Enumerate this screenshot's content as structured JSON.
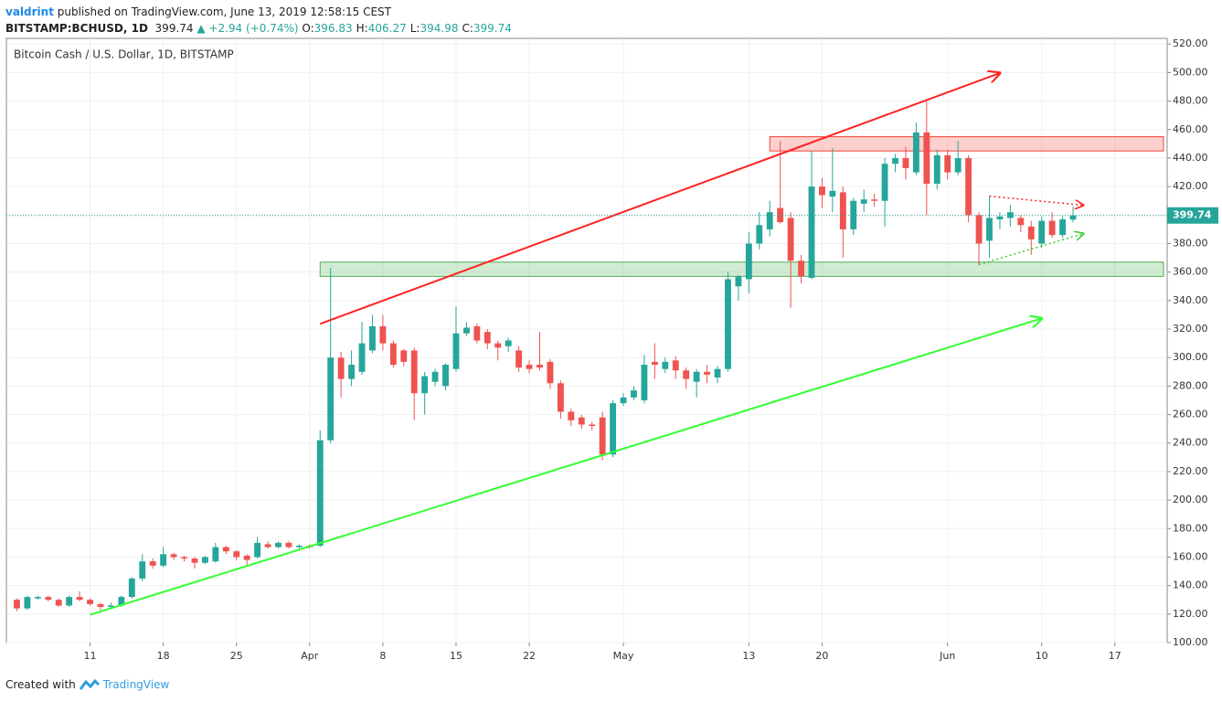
{
  "header": {
    "publisher": "valdrint",
    "published": "published on TradingView.com, June 13, 2019 12:58:15 CEST",
    "symbol": "BITSTAMP:BCHUSD, 1D",
    "last": "399.74",
    "change": "▲ +2.94 (+0.74%)",
    "ohlc": [
      {
        "label": "O:",
        "value": "396.83"
      },
      {
        "label": "H:",
        "value": "406.27"
      },
      {
        "label": "L:",
        "value": "394.98"
      },
      {
        "label": "C:",
        "value": "399.74"
      }
    ]
  },
  "footer": {
    "created": "Created with",
    "brand": "TradingView"
  },
  "chart_data": {
    "type": "candlestick",
    "title": "Bitcoin Cash / U.S. Dollar, 1D, BITSTAMP",
    "up_color": "#26a69a",
    "down_color": "#ef5350",
    "grid": true,
    "ylim": [
      100,
      524
    ],
    "yticks": [
      {
        "value": 100,
        "label": "100.00"
      },
      {
        "value": 120,
        "label": "120.00"
      },
      {
        "value": 140,
        "label": "140.00"
      },
      {
        "value": 160,
        "label": "160.00"
      },
      {
        "value": 180,
        "label": "180.00"
      },
      {
        "value": 200,
        "label": "200.00"
      },
      {
        "value": 220,
        "label": "220.00"
      },
      {
        "value": 240,
        "label": "240.00"
      },
      {
        "value": 260,
        "label": "260.00"
      },
      {
        "value": 280,
        "label": "280.00"
      },
      {
        "value": 300,
        "label": "300.00"
      },
      {
        "value": 320,
        "label": "320.00"
      },
      {
        "value": 340,
        "label": "340.00"
      },
      {
        "value": 360,
        "label": "360.00"
      },
      {
        "value": 380,
        "label": "380.00"
      },
      {
        "value": 400,
        "label": "400.00"
      },
      {
        "value": 420,
        "label": "420.00"
      },
      {
        "value": 440,
        "label": "440.00"
      },
      {
        "value": 460,
        "label": "460.00"
      },
      {
        "value": 480,
        "label": "480.00"
      },
      {
        "value": 500,
        "label": "500.00"
      },
      {
        "value": 520,
        "label": "520.00"
      }
    ],
    "xlim": [
      "03-03",
      "06-22"
    ],
    "xticks": [
      {
        "value": "03-11",
        "label": "11"
      },
      {
        "value": "03-18",
        "label": "18"
      },
      {
        "value": "03-25",
        "label": "25"
      },
      {
        "value": "04-01",
        "label": "Apr"
      },
      {
        "value": "04-08",
        "label": "8"
      },
      {
        "value": "04-15",
        "label": "15"
      },
      {
        "value": "04-22",
        "label": "22"
      },
      {
        "value": "05-01",
        "label": "May"
      },
      {
        "value": "05-13",
        "label": "13"
      },
      {
        "value": "05-20",
        "label": "20"
      },
      {
        "value": "06-01",
        "label": "Jun"
      },
      {
        "value": "06-10",
        "label": "10"
      },
      {
        "value": "06-17",
        "label": "17"
      }
    ],
    "last_price": 399.74,
    "last_price_color": "#26a69a",
    "zones": [
      {
        "low": 445,
        "high": 455,
        "start": "05-15",
        "end": "06-22",
        "color": "#f44336"
      },
      {
        "low": 357,
        "high": 367,
        "start": "04-02",
        "end": "06-22",
        "color": "#4caf50"
      }
    ],
    "trendlines": [
      {
        "start": {
          "date": "04-02",
          "price": 323.7
        },
        "end": {
          "date": "06-06",
          "price": 499.7
        },
        "color": "#f22",
        "dotted": false,
        "arrow": true
      },
      {
        "start": {
          "date": "03-11",
          "price": 119.5
        },
        "end": {
          "date": "06-10",
          "price": 327.5
        },
        "color": "#3f3",
        "dotted": false,
        "arrow": true
      },
      {
        "start": {
          "date": "06-05",
          "price": 413.3
        },
        "end": {
          "date": "06-14",
          "price": 406.9
        },
        "color": "#f22",
        "dotted": true,
        "arrow": true
      },
      {
        "start": {
          "date": "06-04",
          "price": 365.3
        },
        "end": {
          "date": "06-14",
          "price": 387
        },
        "color": "#3c3",
        "dotted": true,
        "arrow": true
      }
    ],
    "candles": [
      {
        "date": "03-04",
        "open": 130,
        "high": 131,
        "low": 122,
        "close": 124
      },
      {
        "date": "03-05",
        "open": 124,
        "high": 133,
        "low": 123,
        "close": 132
      },
      {
        "date": "03-06",
        "open": 131,
        "high": 133,
        "low": 130,
        "close": 132
      },
      {
        "date": "03-07",
        "open": 132,
        "high": 133,
        "low": 129,
        "close": 130
      },
      {
        "date": "03-08",
        "open": 130,
        "high": 131,
        "low": 125,
        "close": 126
      },
      {
        "date": "03-09",
        "open": 126,
        "high": 133,
        "low": 125,
        "close": 132
      },
      {
        "date": "03-10",
        "open": 132,
        "high": 136,
        "low": 129,
        "close": 130
      },
      {
        "date": "03-11",
        "open": 130,
        "high": 131,
        "low": 126,
        "close": 127
      },
      {
        "date": "03-12",
        "open": 127,
        "high": 128,
        "low": 122,
        "close": 125
      },
      {
        "date": "03-13",
        "open": 125,
        "high": 128,
        "low": 124,
        "close": 126
      },
      {
        "date": "03-14",
        "open": 126,
        "high": 133,
        "low": 125,
        "close": 132
      },
      {
        "date": "03-15",
        "open": 132,
        "high": 146,
        "low": 131,
        "close": 145
      },
      {
        "date": "03-16",
        "open": 145,
        "high": 162,
        "low": 143,
        "close": 157
      },
      {
        "date": "03-17",
        "open": 157,
        "high": 159,
        "low": 152,
        "close": 154
      },
      {
        "date": "03-18",
        "open": 154,
        "high": 167,
        "low": 153,
        "close": 162
      },
      {
        "date": "03-19",
        "open": 162,
        "high": 163,
        "low": 158,
        "close": 160
      },
      {
        "date": "03-20",
        "open": 160,
        "high": 161,
        "low": 157,
        "close": 159
      },
      {
        "date": "03-21",
        "open": 159,
        "high": 160,
        "low": 152,
        "close": 156
      },
      {
        "date": "03-22",
        "open": 156,
        "high": 161,
        "low": 155,
        "close": 160
      },
      {
        "date": "03-23",
        "open": 157,
        "high": 170,
        "low": 156,
        "close": 167
      },
      {
        "date": "03-24",
        "open": 167,
        "high": 168,
        "low": 162,
        "close": 164
      },
      {
        "date": "03-25",
        "open": 164,
        "high": 165,
        "low": 158,
        "close": 160
      },
      {
        "date": "03-26",
        "open": 161,
        "high": 162,
        "low": 154,
        "close": 158
      },
      {
        "date": "03-27",
        "open": 160,
        "high": 174,
        "low": 159,
        "close": 170
      },
      {
        "date": "03-28",
        "open": 169,
        "high": 171,
        "low": 166,
        "close": 167
      },
      {
        "date": "03-29",
        "open": 167,
        "high": 171,
        "low": 166,
        "close": 170
      },
      {
        "date": "03-30",
        "open": 170,
        "high": 171,
        "low": 166,
        "close": 167
      },
      {
        "date": "03-31",
        "open": 167,
        "high": 169,
        "low": 166,
        "close": 168
      },
      {
        "date": "04-01",
        "open": 168,
        "high": 169,
        "low": 166,
        "close": 167
      },
      {
        "date": "04-02",
        "open": 168,
        "high": 249,
        "low": 167,
        "close": 242
      },
      {
        "date": "04-03",
        "open": 242,
        "high": 363,
        "low": 240,
        "close": 300
      },
      {
        "date": "04-04",
        "open": 300,
        "high": 304,
        "low": 272,
        "close": 285
      },
      {
        "date": "04-05",
        "open": 285,
        "high": 305,
        "low": 280,
        "close": 295
      },
      {
        "date": "04-06",
        "open": 290,
        "high": 325,
        "low": 288,
        "close": 310
      },
      {
        "date": "04-07",
        "open": 305,
        "high": 330,
        "low": 303,
        "close": 322
      },
      {
        "date": "04-08",
        "open": 322,
        "high": 330,
        "low": 305,
        "close": 310
      },
      {
        "date": "04-09",
        "open": 310,
        "high": 312,
        "low": 293,
        "close": 295
      },
      {
        "date": "04-10",
        "open": 305,
        "high": 306,
        "low": 294,
        "close": 297
      },
      {
        "date": "04-11",
        "open": 305,
        "high": 307,
        "low": 256,
        "close": 275
      },
      {
        "date": "04-12",
        "open": 275,
        "high": 290,
        "low": 260,
        "close": 287
      },
      {
        "date": "04-13",
        "open": 283,
        "high": 292,
        "low": 280,
        "close": 290
      },
      {
        "date": "04-14",
        "open": 280,
        "high": 296,
        "low": 277,
        "close": 295
      },
      {
        "date": "04-15",
        "open": 292,
        "high": 336,
        "low": 290,
        "close": 317
      },
      {
        "date": "04-16",
        "open": 317,
        "high": 325,
        "low": 315,
        "close": 321
      },
      {
        "date": "04-17",
        "open": 322,
        "high": 324,
        "low": 310,
        "close": 312
      },
      {
        "date": "04-18",
        "open": 318,
        "high": 320,
        "low": 306,
        "close": 310
      },
      {
        "date": "04-19",
        "open": 310,
        "high": 312,
        "low": 298,
        "close": 307
      },
      {
        "date": "04-20",
        "open": 308,
        "high": 314,
        "low": 304,
        "close": 312
      },
      {
        "date": "04-21",
        "open": 305,
        "high": 308,
        "low": 290,
        "close": 293
      },
      {
        "date": "04-22",
        "open": 295,
        "high": 298,
        "low": 289,
        "close": 292
      },
      {
        "date": "04-23",
        "open": 295,
        "high": 318,
        "low": 291,
        "close": 293
      },
      {
        "date": "04-24",
        "open": 297,
        "high": 299,
        "low": 278,
        "close": 282
      },
      {
        "date": "04-25",
        "open": 282,
        "high": 284,
        "low": 257,
        "close": 262
      },
      {
        "date": "04-26",
        "open": 262,
        "high": 264,
        "low": 252,
        "close": 256
      },
      {
        "date": "04-27",
        "open": 258,
        "high": 260,
        "low": 250,
        "close": 253
      },
      {
        "date": "04-28",
        "open": 253,
        "high": 255,
        "low": 249,
        "close": 252
      },
      {
        "date": "04-29",
        "open": 258,
        "high": 262,
        "low": 228,
        "close": 232
      },
      {
        "date": "04-30",
        "open": 232,
        "high": 270,
        "low": 230,
        "close": 268
      },
      {
        "date": "05-01",
        "open": 268,
        "high": 275,
        "low": 266,
        "close": 272
      },
      {
        "date": "05-02",
        "open": 272,
        "high": 280,
        "low": 270,
        "close": 277
      },
      {
        "date": "05-03",
        "open": 270,
        "high": 302,
        "low": 268,
        "close": 295
      },
      {
        "date": "05-04",
        "open": 297,
        "high": 310,
        "low": 285,
        "close": 295
      },
      {
        "date": "05-05",
        "open": 292,
        "high": 300,
        "low": 289,
        "close": 297
      },
      {
        "date": "05-06",
        "open": 298,
        "high": 301,
        "low": 285,
        "close": 291
      },
      {
        "date": "05-07",
        "open": 291,
        "high": 293,
        "low": 278,
        "close": 285
      },
      {
        "date": "05-08",
        "open": 283,
        "high": 292,
        "low": 272,
        "close": 290
      },
      {
        "date": "05-09",
        "open": 290,
        "high": 295,
        "low": 282,
        "close": 288
      },
      {
        "date": "05-10",
        "open": 286,
        "high": 294,
        "low": 282,
        "close": 292
      },
      {
        "date": "05-11",
        "open": 292,
        "high": 360,
        "low": 290,
        "close": 355
      },
      {
        "date": "05-12",
        "open": 350,
        "high": 358,
        "low": 340,
        "close": 357
      },
      {
        "date": "05-13",
        "open": 355,
        "high": 388,
        "low": 345,
        "close": 380
      },
      {
        "date": "05-14",
        "open": 380,
        "high": 402,
        "low": 376,
        "close": 393
      },
      {
        "date": "05-15",
        "open": 390,
        "high": 410,
        "low": 385,
        "close": 402
      },
      {
        "date": "05-16",
        "open": 405,
        "high": 452,
        "low": 394,
        "close": 395
      },
      {
        "date": "05-17",
        "open": 398,
        "high": 402,
        "low": 335,
        "close": 368
      },
      {
        "date": "05-18",
        "open": 368,
        "high": 372,
        "low": 352,
        "close": 357
      },
      {
        "date": "05-19",
        "open": 356,
        "high": 445,
        "low": 355,
        "close": 420
      },
      {
        "date": "05-20",
        "open": 420,
        "high": 426,
        "low": 405,
        "close": 414
      },
      {
        "date": "05-21",
        "open": 413,
        "high": 447,
        "low": 402,
        "close": 417
      },
      {
        "date": "05-22",
        "open": 416,
        "high": 420,
        "low": 370,
        "close": 390
      },
      {
        "date": "05-23",
        "open": 390,
        "high": 412,
        "low": 386,
        "close": 410
      },
      {
        "date": "05-24",
        "open": 408,
        "high": 418,
        "low": 402,
        "close": 411
      },
      {
        "date": "05-25",
        "open": 411,
        "high": 415,
        "low": 406,
        "close": 410
      },
      {
        "date": "05-26",
        "open": 410,
        "high": 440,
        "low": 392,
        "close": 436
      },
      {
        "date": "05-27",
        "open": 436,
        "high": 443,
        "low": 430,
        "close": 440
      },
      {
        "date": "05-28",
        "open": 440,
        "high": 448,
        "low": 425,
        "close": 433
      },
      {
        "date": "05-29",
        "open": 430,
        "high": 465,
        "low": 428,
        "close": 458
      },
      {
        "date": "05-30",
        "open": 458,
        "high": 481,
        "low": 400,
        "close": 422
      },
      {
        "date": "05-31",
        "open": 422,
        "high": 446,
        "low": 418,
        "close": 442
      },
      {
        "date": "06-01",
        "open": 442,
        "high": 446,
        "low": 425,
        "close": 430
      },
      {
        "date": "06-02",
        "open": 430,
        "high": 452,
        "low": 428,
        "close": 440
      },
      {
        "date": "06-03",
        "open": 440,
        "high": 442,
        "low": 395,
        "close": 400
      },
      {
        "date": "06-04",
        "open": 400,
        "high": 402,
        "low": 365,
        "close": 380
      },
      {
        "date": "06-05",
        "open": 382,
        "high": 413,
        "low": 370,
        "close": 398
      },
      {
        "date": "06-06",
        "open": 397,
        "high": 402,
        "low": 390,
        "close": 399
      },
      {
        "date": "06-07",
        "open": 398,
        "high": 407,
        "low": 392,
        "close": 402
      },
      {
        "date": "06-08",
        "open": 398,
        "high": 400,
        "low": 388,
        "close": 393
      },
      {
        "date": "06-09",
        "open": 392,
        "high": 396,
        "low": 372,
        "close": 383
      },
      {
        "date": "06-10",
        "open": 380,
        "high": 399,
        "low": 377,
        "close": 396
      },
      {
        "date": "06-11",
        "open": 396,
        "high": 402,
        "low": 384,
        "close": 386
      },
      {
        "date": "06-12",
        "open": 386,
        "high": 399,
        "low": 384,
        "close": 397
      },
      {
        "date": "06-13",
        "open": 396.83,
        "high": 406.27,
        "low": 394.98,
        "close": 399.74
      }
    ]
  }
}
